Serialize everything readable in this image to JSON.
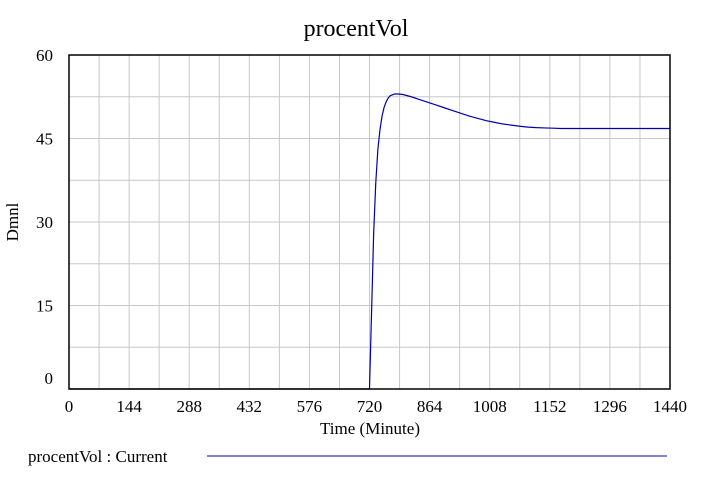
{
  "chart_data": {
    "type": "line",
    "title": "procentVol",
    "xlabel": "Time (Minute)",
    "ylabel": "Dmnl",
    "xlim": [
      0,
      1440
    ],
    "ylim": [
      0,
      60
    ],
    "xticks": [
      0,
      144,
      288,
      432,
      576,
      720,
      864,
      1008,
      1152,
      1296,
      1440
    ],
    "yticks": [
      0,
      15,
      30,
      45,
      60
    ],
    "grid": true,
    "legend": {
      "placement": "bottom"
    },
    "series": [
      {
        "name": "procentVol : Current",
        "color": "#0000aa",
        "x": [
          0,
          100,
          200,
          300,
          400,
          500,
          600,
          700,
          720,
          725,
          730,
          735,
          740,
          745,
          750,
          755,
          760,
          765,
          770,
          780,
          790,
          800,
          810,
          820,
          840,
          860,
          880,
          900,
          920,
          940,
          960,
          980,
          1000,
          1020,
          1040,
          1060,
          1080,
          1100,
          1120,
          1140,
          1160,
          1180,
          1200,
          1240,
          1280,
          1320,
          1360,
          1400,
          1440
        ],
        "y": [
          0,
          0,
          0,
          0,
          0,
          0,
          0,
          0,
          0,
          14,
          28,
          37,
          43,
          46.5,
          49,
          50.6,
          51.6,
          52.3,
          52.7,
          53.0,
          53.0,
          52.9,
          52.7,
          52.5,
          52.0,
          51.5,
          51.0,
          50.5,
          50.0,
          49.5,
          49.0,
          48.6,
          48.2,
          47.9,
          47.6,
          47.4,
          47.2,
          47.05,
          46.95,
          46.9,
          46.85,
          46.8,
          46.8,
          46.8,
          46.8,
          46.8,
          46.8,
          46.8,
          46.8
        ]
      }
    ]
  }
}
